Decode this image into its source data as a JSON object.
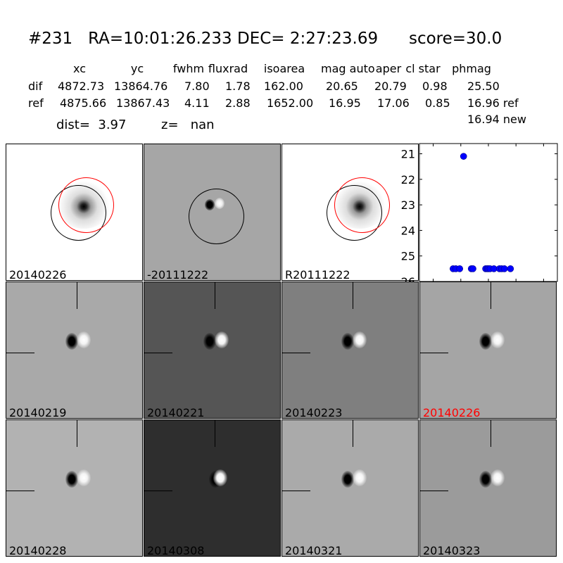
{
  "header": {
    "title": "#231   RA=10:01:26.233 DEC= 2:27:23.69      score=30.0"
  },
  "table": {
    "columns": [
      "xc",
      "yc",
      "fwhm",
      "fluxrad",
      "isoarea",
      "mag auto",
      "aper",
      "cl star",
      "phmag"
    ],
    "rows": [
      {
        "label": "dif",
        "values": [
          "4872.73",
          "13864.76",
          "7.80",
          "1.78",
          "162.00",
          "20.65",
          "20.79",
          "0.98",
          "25.50"
        ]
      },
      {
        "label": "ref",
        "values": [
          "4875.66",
          "13867.43",
          "4.11",
          "2.88",
          "1652.00",
          "16.95",
          "17.06",
          "0.85",
          "16.96 ref"
        ]
      }
    ],
    "extra_phmag": "16.94 new",
    "dist": "dist=  3.97",
    "z": "z=   nan"
  },
  "stamps": [
    {
      "label": "20140226"
    },
    {
      "label": "-20111222"
    },
    {
      "label": "R20111222"
    },
    {
      "label": "20140219"
    },
    {
      "label": "20140221"
    },
    {
      "label": "20140223"
    },
    {
      "label": "20140226",
      "color": "#ff0000"
    },
    {
      "label": "20140228"
    },
    {
      "label": "20140308"
    },
    {
      "label": "20140321"
    },
    {
      "label": "20140323"
    }
  ],
  "chart_data": {
    "type": "scatter",
    "xlim": [
      -125,
      125
    ],
    "ylim": [
      26,
      20.6
    ],
    "xticks": [
      "-100",
      "-50",
      "0",
      "50",
      "100"
    ],
    "xtick_values": [
      -100,
      -50,
      0,
      50,
      100
    ],
    "yticks": [
      "21",
      "22",
      "23",
      "24",
      "25",
      "26"
    ],
    "ytick_values": [
      21,
      22,
      23,
      24,
      25,
      26
    ],
    "color": "#0000ff",
    "points": [
      [
        -45,
        21.1
      ],
      [
        -64,
        25.5
      ],
      [
        -59,
        25.5
      ],
      [
        -52,
        25.5
      ],
      [
        -31,
        25.5
      ],
      [
        -28,
        25.5
      ],
      [
        -5,
        25.5
      ],
      [
        -2,
        25.5
      ],
      [
        0,
        25.5
      ],
      [
        3,
        25.5
      ],
      [
        10,
        25.5
      ],
      [
        20,
        25.5
      ],
      [
        24,
        25.5
      ],
      [
        29,
        25.5
      ],
      [
        40,
        25.5
      ]
    ]
  }
}
